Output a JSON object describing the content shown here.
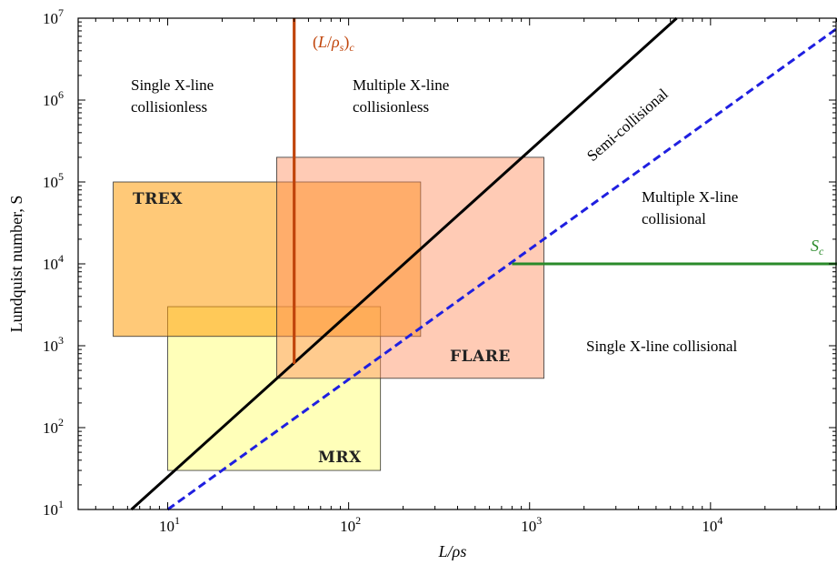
{
  "chart_data": {
    "type": "region-map",
    "xlabel": "L/ρs",
    "ylabel": "Lundquist number, S",
    "xscale": "log",
    "yscale": "log",
    "xlim": [
      3.2,
      50000
    ],
    "ylim": [
      10,
      10000000
    ],
    "grid": false,
    "x_ticks": [
      {
        "value": 10,
        "base": "10",
        "exp": "1"
      },
      {
        "value": 100,
        "base": "10",
        "exp": "2"
      },
      {
        "value": 1000,
        "base": "10",
        "exp": "3"
      },
      {
        "value": 10000,
        "base": "10",
        "exp": "4"
      }
    ],
    "y_ticks": [
      {
        "value": 10,
        "base": "10",
        "exp": "1"
      },
      {
        "value": 100,
        "base": "10",
        "exp": "2"
      },
      {
        "value": 1000,
        "base": "10",
        "exp": "3"
      },
      {
        "value": 10000,
        "base": "10",
        "exp": "4"
      },
      {
        "value": 100000,
        "base": "10",
        "exp": "5"
      },
      {
        "value": 1000000,
        "base": "10",
        "exp": "6"
      },
      {
        "value": 10000000,
        "base": "10",
        "exp": "7"
      }
    ],
    "boxes": [
      {
        "name": "MRX",
        "x": [
          10,
          150
        ],
        "y": [
          30,
          3000
        ],
        "color": "#ffff80",
        "opacity": 0.55,
        "label_anchor": "bottom-right"
      },
      {
        "name": "TREX",
        "x": [
          5,
          250
        ],
        "y": [
          1300,
          100000
        ],
        "color": "#ff9d0a",
        "opacity": 0.55,
        "label_anchor": "top-left"
      },
      {
        "name": "FLARE",
        "x": [
          40,
          1200
        ],
        "y": [
          400,
          200000
        ],
        "color": "#ff8c5a",
        "opacity": 0.45,
        "label_anchor": "bottom-right"
      }
    ],
    "lines": [
      {
        "id": "semi-collisional-boundary",
        "style": "solid",
        "color": "#000000",
        "points": [
          [
            6.3,
            10
          ],
          [
            6500,
            10000000
          ]
        ]
      },
      {
        "id": "collisional-boundary",
        "style": "dashed",
        "color": "#1f1fe0",
        "points": [
          [
            10,
            10
          ],
          [
            50000,
            7500000
          ]
        ]
      },
      {
        "id": "Lc-line",
        "style": "solid",
        "color": "#c0440a",
        "points": [
          [
            50,
            600
          ],
          [
            50,
            10000000
          ]
        ]
      },
      {
        "id": "Sc-line",
        "style": "solid",
        "color": "#2a8a2a",
        "points": [
          [
            800,
            10000
          ],
          [
            50000,
            10000
          ]
        ]
      }
    ],
    "annotations": {
      "single_collisionless_1": "Single X-line",
      "single_collisionless_2": "collisionless",
      "multiple_collisionless_1": "Multiple X-line",
      "multiple_collisionless_2": "collisionless",
      "semi_collisional": "Semi-collisional",
      "multiple_collisional_1": "Multiple X-line",
      "multiple_collisional_2": "collisional",
      "single_collisional": "Single X-line collisional",
      "lc_label_L": "L",
      "lc_label_rho": "ρ",
      "lc_label_s": "s",
      "lc_label_c": "c",
      "sc_label_S": "S",
      "sc_label_c": "c"
    }
  }
}
